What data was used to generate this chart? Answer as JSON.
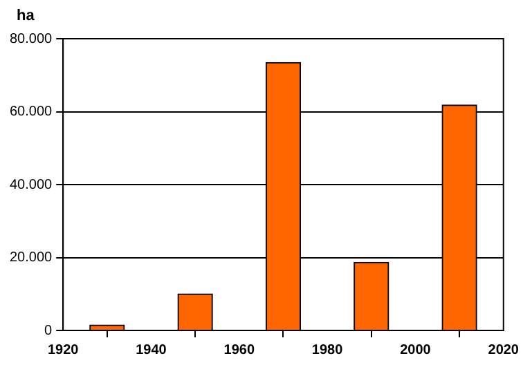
{
  "chart_data": {
    "type": "bar",
    "ylabel": "ha",
    "x": [
      1930,
      1950,
      1970,
      1990,
      2010
    ],
    "values": [
      1500,
      10000,
      73500,
      18700,
      61800
    ],
    "color": "#ff6600",
    "xlim": [
      1920,
      2020
    ],
    "xticks": [
      1920,
      1940,
      1960,
      1980,
      2000,
      2020
    ],
    "ylim": [
      0,
      80000
    ],
    "yticks": [
      0,
      {
        "value": 20000,
        "label": "20.000"
      },
      {
        "value": 40000,
        "label": "40.000"
      },
      {
        "value": 60000,
        "label": "60.000"
      },
      {
        "value": 80000,
        "label": "80.000"
      }
    ],
    "grid": "y"
  }
}
